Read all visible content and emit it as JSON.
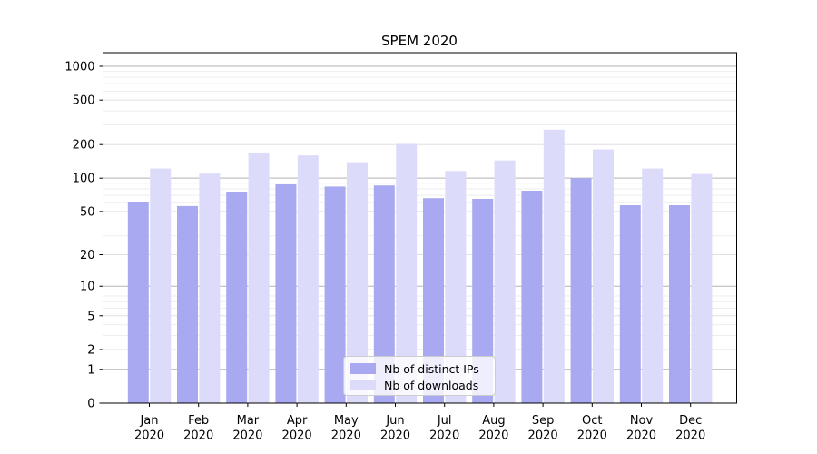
{
  "chart_data": {
    "type": "bar",
    "title": "SPEM 2020",
    "categories": [
      "Jan 2020",
      "Feb 2020",
      "Mar 2020",
      "Apr 2020",
      "May 2020",
      "Jun 2020",
      "Jul 2020",
      "Aug 2020",
      "Sep 2020",
      "Oct 2020",
      "Nov 2020",
      "Dec 2020"
    ],
    "series": [
      {
        "name": "Nb of distinct IPs",
        "color": "#a9a9f2",
        "values": [
          61,
          56,
          75,
          88,
          84,
          86,
          66,
          65,
          77,
          100,
          57,
          57
        ]
      },
      {
        "name": "Nb of downloads",
        "color": "#dcdcfa",
        "values": [
          122,
          110,
          170,
          160,
          139,
          203,
          116,
          144,
          272,
          181,
          122,
          109
        ]
      }
    ],
    "xlabel": "",
    "ylabel": "",
    "yscale": "symlog",
    "yticks": [
      0,
      1,
      2,
      5,
      10,
      20,
      50,
      100,
      200,
      500,
      1000
    ],
    "ylim": [
      0,
      1250
    ],
    "grid": "both",
    "legend_position": "lower center",
    "colors": {
      "major_gridline": "#b3b3b3",
      "sub_gridline": "#e0e0e0",
      "minor_gridline": "#eeeeee",
      "axis": "#000000",
      "text": "#000000",
      "legend_border": "#cccccc"
    }
  }
}
